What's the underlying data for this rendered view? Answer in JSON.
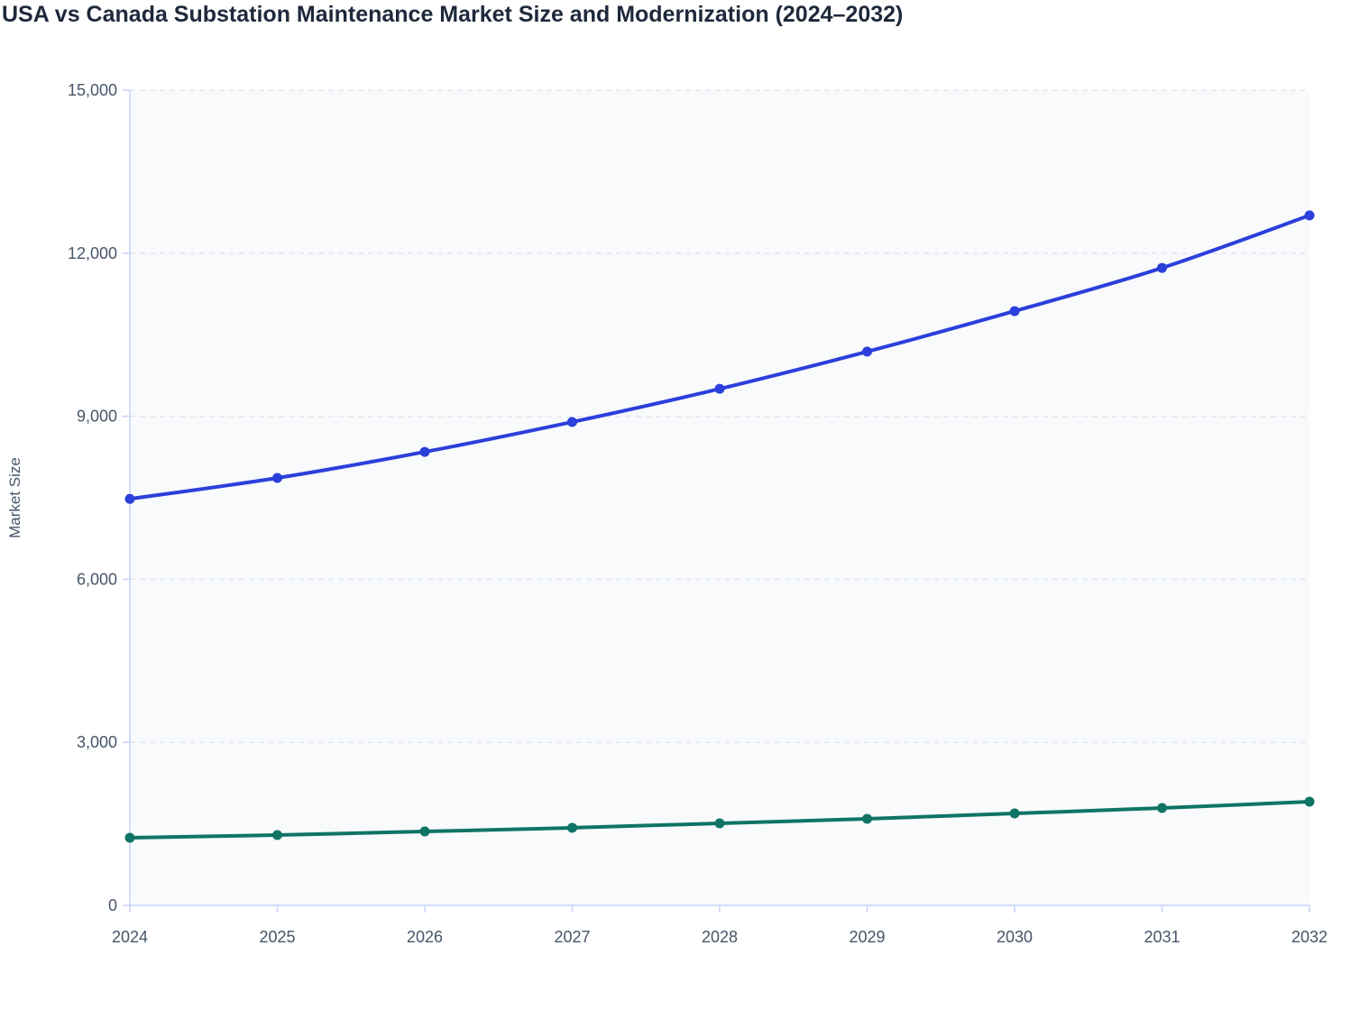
{
  "chart_data": {
    "type": "line",
    "title": "USA vs Canada Substation Maintenance Market Size and Modernization (2024–2032)",
    "xlabel": "",
    "ylabel": "Market Size",
    "x": [
      "2024",
      "2025",
      "2026",
      "2027",
      "2028",
      "2029",
      "2030",
      "2031",
      "2032"
    ],
    "ylim": [
      0,
      15000
    ],
    "yticks": [
      0,
      3000,
      6000,
      9000,
      12000,
      15000
    ],
    "ytick_labels": [
      "0",
      "3,000",
      "6,000",
      "9,000",
      "12,000",
      "15,000"
    ],
    "grid": "horizontal dashed",
    "legend": "none",
    "series": [
      {
        "color": "#2b3fdb",
        "values": [
          7480,
          7865,
          8345,
          8895,
          9505,
          10190,
          10935,
          11730,
          12695
        ]
      },
      {
        "color": "#0f7466",
        "values": [
          1245,
          1295,
          1360,
          1428,
          1510,
          1593,
          1692,
          1792,
          1908
        ]
      }
    ],
    "plot_background": "#f8fafc"
  }
}
